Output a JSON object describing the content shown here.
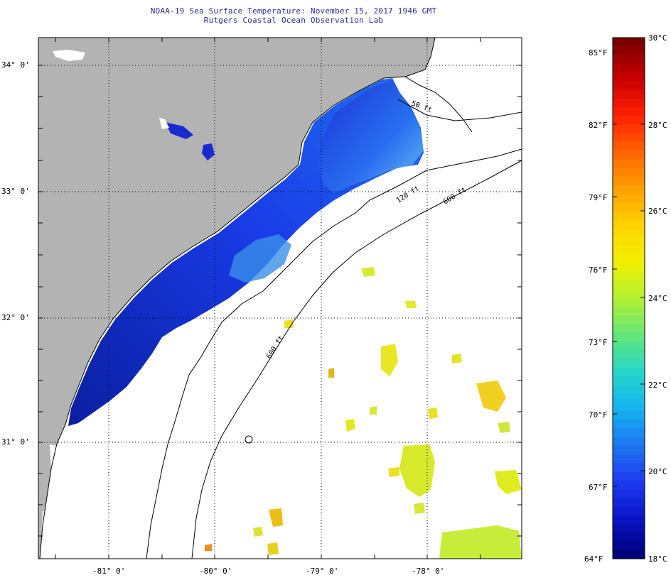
{
  "title": {
    "line1": "NOAA-19 Sea Surface Temperature:  November 15, 2017 1946 GMT",
    "line2": "Rutgers Coastal Ocean Observation Lab"
  },
  "map": {
    "lat_labels": [
      "34° 0'",
      "33° 0'",
      "32° 0'",
      "31° 0'"
    ],
    "lon_labels": [
      "-81° 0'",
      "-80° 0'",
      "-79° 0'",
      "-78° 0'"
    ],
    "bathymetry_labels": [
      "50 ft",
      "120 ft",
      "600 ft",
      "600 ft"
    ],
    "colors": {
      "land": "#b3b3b3",
      "no_data": "#ffffff",
      "coastline": "#000000"
    }
  },
  "colorbar": {
    "fahrenheit_labels": [
      "85°F",
      "82°F",
      "79°F",
      "76°F",
      "73°F",
      "70°F",
      "67°F",
      "64°F"
    ],
    "celsius_labels": [
      "30°C",
      "28°C",
      "26°C",
      "24°C",
      "22°C",
      "20°C",
      "18°C"
    ],
    "colors": [
      "#7a0000",
      "#c80000",
      "#ff2000",
      "#ff6400",
      "#ffa000",
      "#ffd200",
      "#f0f000",
      "#b4f032",
      "#64e678",
      "#28d7c8",
      "#14b4f0",
      "#1e78f0",
      "#1e3cf0",
      "#0a14c8",
      "#00007a"
    ]
  }
}
